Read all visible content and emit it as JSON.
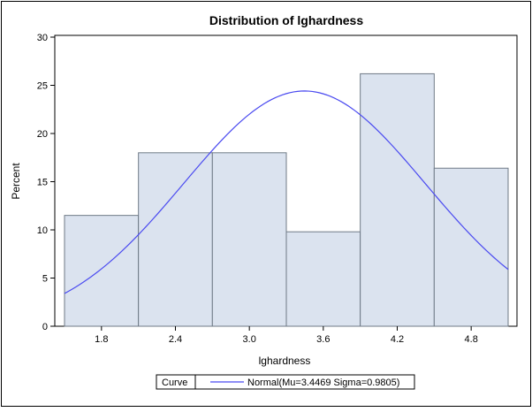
{
  "chart_data": {
    "type": "bar",
    "title": "Distribution of lghardness",
    "xlabel": "lghardness",
    "ylabel": "Percent",
    "ylim": [
      0,
      30
    ],
    "xlim": [
      1.5,
      5.1
    ],
    "y_ticks": [
      0,
      5,
      10,
      15,
      20,
      25,
      30
    ],
    "x_ticks": [
      "1.8",
      "2.4",
      "3.0",
      "3.6",
      "4.2",
      "4.8"
    ],
    "bins": [
      {
        "center": 1.8,
        "lower": 1.5,
        "upper": 2.1,
        "percent": 11.5
      },
      {
        "center": 2.4,
        "lower": 2.1,
        "upper": 2.7,
        "percent": 18.0
      },
      {
        "center": 3.0,
        "lower": 2.7,
        "upper": 3.3,
        "percent": 18.0
      },
      {
        "center": 3.6,
        "lower": 3.3,
        "upper": 3.9,
        "percent": 9.8
      },
      {
        "center": 4.2,
        "lower": 3.9,
        "upper": 4.5,
        "percent": 26.2
      },
      {
        "center": 4.8,
        "lower": 4.5,
        "upper": 5.1,
        "percent": 16.4
      }
    ],
    "curve": {
      "type": "normal",
      "mu": 3.4469,
      "sigma": 0.9805,
      "bin_width": 0.6
    },
    "grid": false,
    "legend_position": "bottom",
    "colors": {
      "bar_fill": "#dbe3ef",
      "bar_stroke": "#6f7a86",
      "curve": "#4a4af0",
      "frame": "#000000"
    }
  },
  "legend": {
    "title": "Curve",
    "entry": "Normal(Mu=3.4469 Sigma=0.9805)"
  }
}
